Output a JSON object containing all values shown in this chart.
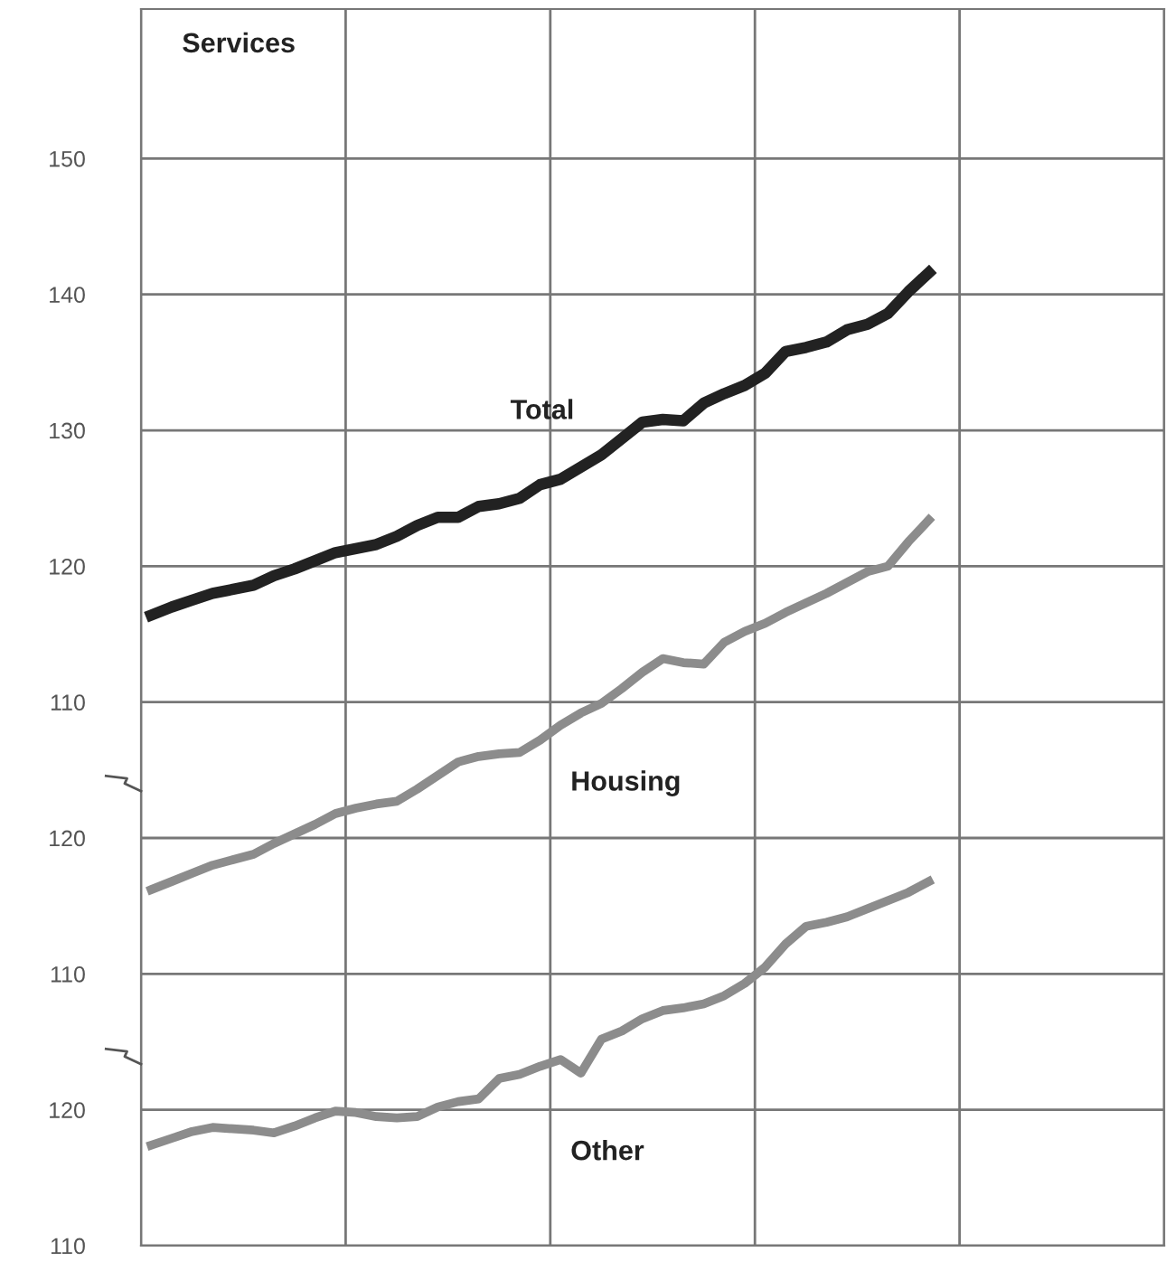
{
  "chart_data": {
    "type": "line",
    "title": "Services",
    "categories": [
      null,
      null,
      null,
      null,
      null,
      null,
      null,
      null,
      null,
      null,
      null,
      null,
      null,
      null,
      null,
      null,
      null,
      null,
      null,
      null,
      null,
      null,
      null,
      null,
      null,
      null,
      null,
      null,
      null,
      null,
      null,
      null,
      null,
      null,
      null,
      null,
      null,
      null,
      null,
      null,
      null,
      null,
      null,
      null,
      null,
      null,
      null,
      null,
      null,
      null
    ],
    "series": [
      {
        "name": "Total",
        "color": "#222222",
        "values": [
          116.4,
          117.0,
          117.5,
          118.0,
          118.3,
          118.6,
          119.3,
          119.8,
          120.4,
          121.0,
          121.3,
          121.6,
          122.2,
          123.0,
          123.6,
          123.6,
          124.4,
          124.6,
          125.0,
          126.0,
          126.4,
          127.3,
          128.2,
          129.4,
          130.6,
          130.8,
          130.7,
          132.0,
          132.7,
          133.3,
          134.2,
          135.8,
          136.1,
          136.5,
          137.4,
          137.8,
          138.6,
          140.2,
          141.6,
          null,
          null,
          null,
          null,
          null,
          null,
          null,
          null,
          null,
          null,
          null
        ]
      },
      {
        "name": "Housing",
        "color": "#8c8c8c",
        "axis": "y2",
        "values": [
          116.2,
          116.8,
          117.4,
          118.0,
          118.4,
          118.8,
          119.6,
          120.3,
          121.0,
          121.8,
          122.2,
          122.5,
          122.7,
          123.6,
          124.6,
          125.6,
          126.0,
          126.2,
          126.3,
          127.2,
          128.3,
          129.2,
          129.9,
          131.0,
          132.2,
          133.2,
          132.9,
          132.8,
          134.4,
          135.2,
          135.8,
          136.6,
          137.3,
          138.0,
          138.8,
          139.6,
          140.0,
          141.8,
          143.4,
          null,
          null,
          null,
          null,
          null,
          null,
          null,
          null,
          null,
          null,
          null
        ]
      },
      {
        "name": "Other",
        "color": "#8c8c8c",
        "axis": "y3",
        "values": [
          117.4,
          117.9,
          118.4,
          118.7,
          118.6,
          118.5,
          118.3,
          118.8,
          119.4,
          119.9,
          119.8,
          119.5,
          119.4,
          119.5,
          120.2,
          120.6,
          120.8,
          122.3,
          122.6,
          123.2,
          123.7,
          122.7,
          125.2,
          125.8,
          126.7,
          127.3,
          127.5,
          127.8,
          128.4,
          129.3,
          130.5,
          132.2,
          133.5,
          133.8,
          134.2,
          134.8,
          135.4,
          136.0,
          136.8,
          null,
          null,
          null,
          null,
          null,
          null,
          null,
          null,
          null,
          null,
          null
        ]
      }
    ],
    "ylim": [
      70,
      161
    ],
    "yticks": [
      110,
      120,
      130,
      140,
      150
    ],
    "y2lim": [
      90,
      181
    ],
    "y2ticks": [
      110,
      120
    ],
    "y3lim": [
      110,
      201
    ],
    "y3ticks": [
      110,
      120
    ],
    "grid": true,
    "tick_labels": "y",
    "legend": false,
    "marker": "none",
    "line_style": "solid"
  }
}
